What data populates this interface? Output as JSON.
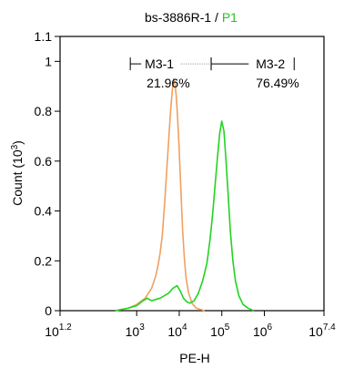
{
  "chart_data": {
    "type": "line",
    "title": {
      "sample": "bs-3886R-1",
      "separator": " / ",
      "gate": "P1",
      "gate_color": "#22c522"
    },
    "xlabel": "PE-H",
    "ylabel": "Count  (10",
    "ylabel_exp": "3",
    "ylabel_close": ")",
    "x_scale": "log10",
    "xlim": [
      1.2,
      7.4
    ],
    "ylim": [
      0,
      1.1
    ],
    "x_ticks": [
      {
        "pos": 1.2,
        "base": "10",
        "exp": "1.2"
      },
      {
        "pos": 3,
        "base": "10",
        "exp": "3"
      },
      {
        "pos": 4,
        "base": "10",
        "exp": "4"
      },
      {
        "pos": 5,
        "base": "10",
        "exp": "5"
      },
      {
        "pos": 6,
        "base": "10",
        "exp": "6"
      },
      {
        "pos": 7.4,
        "base": "10",
        "exp": "7.4"
      }
    ],
    "y_ticks": [
      {
        "value": 0,
        "label": "0"
      },
      {
        "value": 0.2,
        "label": "0.2"
      },
      {
        "value": 0.4,
        "label": "0.4"
      },
      {
        "value": 0.6,
        "label": "0.6"
      },
      {
        "value": 0.8,
        "label": "0.8"
      },
      {
        "value": 1,
        "label": "1"
      },
      {
        "value": 1.1,
        "label": "1.1"
      }
    ],
    "grid": false,
    "series": [
      {
        "color": "#f0a060",
        "x": [
          2.5,
          2.8,
          3.0,
          3.2,
          3.35,
          3.45,
          3.5,
          3.55,
          3.6,
          3.63,
          3.66,
          3.69,
          3.72,
          3.75,
          3.78,
          3.81,
          3.84,
          3.87,
          3.9,
          3.93,
          3.96,
          3.99,
          4.02,
          4.05,
          4.08,
          4.12,
          4.16,
          4.22,
          4.3,
          4.4,
          4.6
        ],
        "y": [
          0.0,
          0.01,
          0.025,
          0.05,
          0.09,
          0.14,
          0.18,
          0.23,
          0.3,
          0.37,
          0.44,
          0.52,
          0.6,
          0.68,
          0.76,
          0.83,
          0.89,
          0.93,
          0.91,
          0.86,
          0.78,
          0.68,
          0.56,
          0.44,
          0.32,
          0.21,
          0.13,
          0.07,
          0.03,
          0.01,
          0.0
        ]
      },
      {
        "color": "#22d322",
        "x": [
          2.5,
          2.8,
          3.0,
          3.15,
          3.25,
          3.35,
          3.45,
          3.55,
          3.65,
          3.75,
          3.85,
          3.95,
          4.02,
          4.1,
          4.18,
          4.25,
          4.35,
          4.45,
          4.55,
          4.65,
          4.72,
          4.78,
          4.84,
          4.9,
          4.95,
          5.0,
          5.05,
          5.1,
          5.15,
          5.2,
          5.26,
          5.32,
          5.4,
          5.5,
          5.62,
          5.75
        ],
        "y": [
          0.0,
          0.01,
          0.02,
          0.04,
          0.05,
          0.04,
          0.045,
          0.05,
          0.06,
          0.07,
          0.09,
          0.1,
          0.08,
          0.05,
          0.035,
          0.03,
          0.04,
          0.07,
          0.12,
          0.19,
          0.28,
          0.38,
          0.5,
          0.62,
          0.71,
          0.76,
          0.72,
          0.6,
          0.46,
          0.32,
          0.2,
          0.12,
          0.06,
          0.025,
          0.01,
          0.0
        ]
      }
    ],
    "markers": [
      {
        "name": "M3-1",
        "percent": "21.96%",
        "x_start": 2.85,
        "x_end": 4.75,
        "y": 0.99,
        "style": "dotted-end"
      },
      {
        "name": "M3-2",
        "percent": "76.49%",
        "x_start": 4.75,
        "x_end": 6.7,
        "y": 0.99,
        "style": "solid"
      }
    ]
  }
}
